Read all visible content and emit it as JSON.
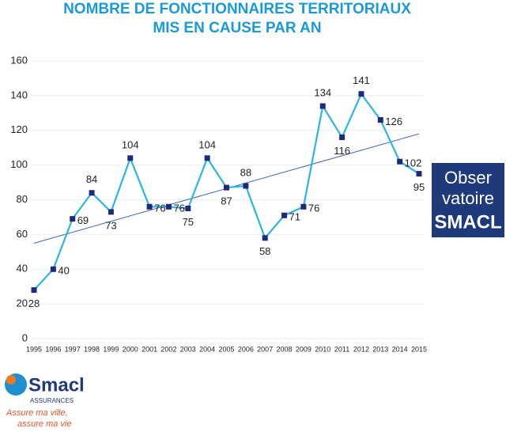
{
  "chart_data": {
    "type": "line",
    "title": [
      "NOMBRE DE FONCTIONNAIRES TERRITORIAUX",
      "MIS EN CAUSE PAR AN"
    ],
    "categories": [
      "1995",
      "1996",
      "1997",
      "1998",
      "1999",
      "2000",
      "2001",
      "2002",
      "2003",
      "2004",
      "2005",
      "2006",
      "2007",
      "2008",
      "2009",
      "2010",
      "2011",
      "2012",
      "2013",
      "2014",
      "2015"
    ],
    "values": [
      28,
      40,
      69,
      84,
      73,
      104,
      76,
      76,
      75,
      104,
      87,
      88,
      58,
      71,
      76,
      134,
      116,
      141,
      126,
      102,
      95
    ],
    "color": "#2bb5e6",
    "marker_color": "#1e2a78",
    "trendline": [
      55,
      118
    ],
    "trendline_color": "#3b64c0",
    "ylim": [
      0,
      160
    ],
    "yticks": [
      0,
      20,
      40,
      60,
      80,
      100,
      120,
      140,
      160
    ],
    "grid": true
  },
  "logos": {
    "observatoire": [
      "Obser",
      "vatoire",
      "SMACL"
    ],
    "brand": "Smacl",
    "brand_sub": "ASSURANCES",
    "slogan": [
      "Assure ma ville,",
      "assure ma vie"
    ]
  }
}
